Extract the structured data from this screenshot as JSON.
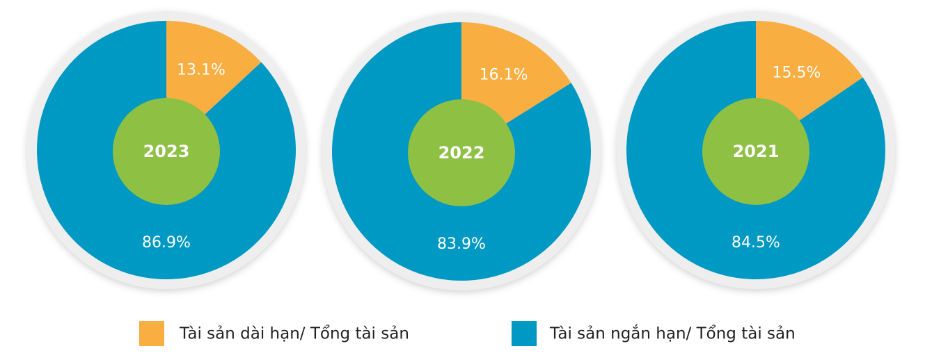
{
  "chart_data": [
    {
      "type": "pie",
      "title": "2023",
      "categories": [
        "Tài sản dài hạn/ Tổng tài sản",
        "Tài sản ngắn hạn/ Tổng tài sản"
      ],
      "values": [
        13.1,
        86.9
      ],
      "value_labels": [
        "13.1%",
        "86.9%"
      ],
      "colors": [
        "#f9ae42",
        "#0099c4"
      ]
    },
    {
      "type": "pie",
      "title": "2022",
      "categories": [
        "Tài sản dài hạn/ Tổng tài sản",
        "Tài sản ngắn hạn/ Tổng tài sản"
      ],
      "values": [
        16.1,
        83.9
      ],
      "value_labels": [
        "16.1%",
        "83.9%"
      ],
      "colors": [
        "#f9ae42",
        "#0099c4"
      ]
    },
    {
      "type": "pie",
      "title": "2021",
      "categories": [
        "Tài sản dài hạn/ Tổng tài sản",
        "Tài sản ngắn hạn/ Tổng tài sản"
      ],
      "values": [
        15.5,
        84.5
      ],
      "value_labels": [
        "15.5%",
        "84.5%"
      ],
      "colors": [
        "#f9ae42",
        "#0099c4"
      ]
    }
  ]
}
